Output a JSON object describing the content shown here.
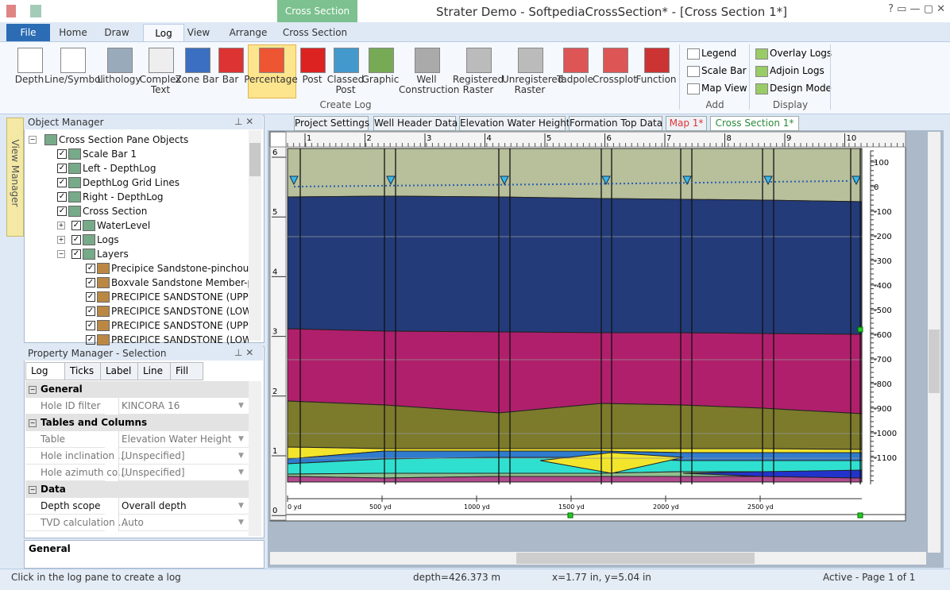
{
  "window": {
    "title": "Strater Demo - SoftpediaCrossSection* - [Cross Section 1*]",
    "context_tab": "Cross Section"
  },
  "ribbon": {
    "tabs": [
      "File",
      "Home",
      "Draw",
      "Log",
      "View",
      "Arrange",
      "Cross Section"
    ],
    "create_log": [
      "Depth",
      "Line/Symbol",
      "Lithology",
      "Complex Text",
      "Zone Bar",
      "Bar",
      "Percentage",
      "Post",
      "Classed Post",
      "Graphic",
      "Well Construction",
      "Registered Raster",
      "Unregistered Raster",
      "Tadpole",
      "Crossplot",
      "Function"
    ],
    "add": [
      "Legend",
      "Scale Bar",
      "Map View"
    ],
    "display": [
      "Overlay Logs",
      "Adjoin Logs",
      "Design Mode"
    ],
    "groups": [
      "Create Log",
      "Add",
      "Display"
    ]
  },
  "side_tab": "View Manager",
  "object_manager": {
    "title": "Object Manager",
    "items": [
      {
        "label": "Cross Section Pane Objects",
        "level": 0
      },
      {
        "label": "Scale Bar 1",
        "level": 1
      },
      {
        "label": "Left - DepthLog",
        "level": 1
      },
      {
        "label": "DepthLog Grid Lines",
        "level": 1
      },
      {
        "label": "Right - DepthLog",
        "level": 1
      },
      {
        "label": "Cross Section",
        "level": 1
      },
      {
        "label": "WaterLevel",
        "level": 2
      },
      {
        "label": "Logs",
        "level": 2
      },
      {
        "label": "Layers",
        "level": 2
      },
      {
        "label": "Precipice Sandstone-pinchouts",
        "level": 3
      },
      {
        "label": "Boxvale Sandstone Member-pinc",
        "level": 3
      },
      {
        "label": "PRECIPICE SANDSTONE (UPPER",
        "level": 3
      },
      {
        "label": "PRECIPICE SANDSTONE (LOWER",
        "level": 3
      },
      {
        "label": "PRECIPICE SANDSTONE (UPPER",
        "level": 3
      },
      {
        "label": "PRECIPICE SANDSTONE (LOWER",
        "level": 3
      }
    ]
  },
  "property_manager": {
    "title": "Property Manager - Selection",
    "tabs": [
      "Log",
      "Ticks",
      "Label",
      "Line",
      "Fill"
    ],
    "sections": [
      {
        "name": "General",
        "rows": [
          [
            "Hole ID filter",
            "KINCORA 16"
          ]
        ]
      },
      {
        "name": "Tables and Columns",
        "rows": [
          [
            "Table",
            "Elevation Water Height"
          ],
          [
            "Hole inclination ...",
            "[Unspecified]"
          ],
          [
            "Hole azimuth co...",
            "[Unspecified]"
          ]
        ]
      },
      {
        "name": "Data",
        "rows": [
          [
            "Depth scope",
            "Overall depth"
          ],
          [
            "TVD calculation ...",
            "Auto"
          ]
        ]
      }
    ],
    "description": "General"
  },
  "document_tabs": [
    "Project Settings",
    "Well Header Data",
    "Elevation Water Height",
    "Formation Top Data",
    "Map 1*",
    "Cross Section 1*"
  ],
  "canvas": {
    "top_ruler": [
      "1",
      "2",
      "3",
      "4",
      "5",
      "6",
      "7",
      "8",
      "9",
      "10"
    ],
    "left_ruler": [
      "6",
      "5",
      "4",
      "3",
      "2",
      "1",
      "0"
    ],
    "elevation_axis": [
      "100",
      "0",
      "-100",
      "-200",
      "-300",
      "-400",
      "-500",
      "-600",
      "-700",
      "-800",
      "-900",
      "-1000",
      "-1100"
    ],
    "scale_bar": [
      "0 yd",
      "500 yd",
      "1000 yd",
      "1500 yd",
      "2000 yd",
      "2500 yd"
    ]
  },
  "status_bar": [
    "Click in the log pane to create a log",
    "depth=426.373 m",
    "x=1.77 in, y=5.04 in",
    "Active - Page 1 of 1"
  ]
}
